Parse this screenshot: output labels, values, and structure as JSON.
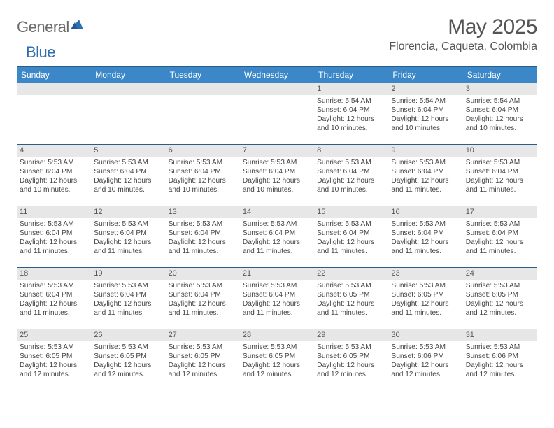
{
  "logo": {
    "text1": "General",
    "text2": "Blue"
  },
  "title": "May 2025",
  "location": "Florencia, Caqueta, Colombia",
  "colors": {
    "header_bg": "#3b87c8",
    "header_border": "#2a5d8a",
    "daynum_bg": "#e7e7e7",
    "text": "#444444",
    "logo_gray": "#6b6b6b",
    "logo_blue": "#2f6fb0"
  },
  "weekdays": [
    "Sunday",
    "Monday",
    "Tuesday",
    "Wednesday",
    "Thursday",
    "Friday",
    "Saturday"
  ],
  "weeks": [
    [
      {
        "n": "",
        "sr": "",
        "ss": "",
        "dl": ""
      },
      {
        "n": "",
        "sr": "",
        "ss": "",
        "dl": ""
      },
      {
        "n": "",
        "sr": "",
        "ss": "",
        "dl": ""
      },
      {
        "n": "",
        "sr": "",
        "ss": "",
        "dl": ""
      },
      {
        "n": "1",
        "sr": "Sunrise: 5:54 AM",
        "ss": "Sunset: 6:04 PM",
        "dl": "Daylight: 12 hours and 10 minutes."
      },
      {
        "n": "2",
        "sr": "Sunrise: 5:54 AM",
        "ss": "Sunset: 6:04 PM",
        "dl": "Daylight: 12 hours and 10 minutes."
      },
      {
        "n": "3",
        "sr": "Sunrise: 5:54 AM",
        "ss": "Sunset: 6:04 PM",
        "dl": "Daylight: 12 hours and 10 minutes."
      }
    ],
    [
      {
        "n": "4",
        "sr": "Sunrise: 5:53 AM",
        "ss": "Sunset: 6:04 PM",
        "dl": "Daylight: 12 hours and 10 minutes."
      },
      {
        "n": "5",
        "sr": "Sunrise: 5:53 AM",
        "ss": "Sunset: 6:04 PM",
        "dl": "Daylight: 12 hours and 10 minutes."
      },
      {
        "n": "6",
        "sr": "Sunrise: 5:53 AM",
        "ss": "Sunset: 6:04 PM",
        "dl": "Daylight: 12 hours and 10 minutes."
      },
      {
        "n": "7",
        "sr": "Sunrise: 5:53 AM",
        "ss": "Sunset: 6:04 PM",
        "dl": "Daylight: 12 hours and 10 minutes."
      },
      {
        "n": "8",
        "sr": "Sunrise: 5:53 AM",
        "ss": "Sunset: 6:04 PM",
        "dl": "Daylight: 12 hours and 10 minutes."
      },
      {
        "n": "9",
        "sr": "Sunrise: 5:53 AM",
        "ss": "Sunset: 6:04 PM",
        "dl": "Daylight: 12 hours and 11 minutes."
      },
      {
        "n": "10",
        "sr": "Sunrise: 5:53 AM",
        "ss": "Sunset: 6:04 PM",
        "dl": "Daylight: 12 hours and 11 minutes."
      }
    ],
    [
      {
        "n": "11",
        "sr": "Sunrise: 5:53 AM",
        "ss": "Sunset: 6:04 PM",
        "dl": "Daylight: 12 hours and 11 minutes."
      },
      {
        "n": "12",
        "sr": "Sunrise: 5:53 AM",
        "ss": "Sunset: 6:04 PM",
        "dl": "Daylight: 12 hours and 11 minutes."
      },
      {
        "n": "13",
        "sr": "Sunrise: 5:53 AM",
        "ss": "Sunset: 6:04 PM",
        "dl": "Daylight: 12 hours and 11 minutes."
      },
      {
        "n": "14",
        "sr": "Sunrise: 5:53 AM",
        "ss": "Sunset: 6:04 PM",
        "dl": "Daylight: 12 hours and 11 minutes."
      },
      {
        "n": "15",
        "sr": "Sunrise: 5:53 AM",
        "ss": "Sunset: 6:04 PM",
        "dl": "Daylight: 12 hours and 11 minutes."
      },
      {
        "n": "16",
        "sr": "Sunrise: 5:53 AM",
        "ss": "Sunset: 6:04 PM",
        "dl": "Daylight: 12 hours and 11 minutes."
      },
      {
        "n": "17",
        "sr": "Sunrise: 5:53 AM",
        "ss": "Sunset: 6:04 PM",
        "dl": "Daylight: 12 hours and 11 minutes."
      }
    ],
    [
      {
        "n": "18",
        "sr": "Sunrise: 5:53 AM",
        "ss": "Sunset: 6:04 PM",
        "dl": "Daylight: 12 hours and 11 minutes."
      },
      {
        "n": "19",
        "sr": "Sunrise: 5:53 AM",
        "ss": "Sunset: 6:04 PM",
        "dl": "Daylight: 12 hours and 11 minutes."
      },
      {
        "n": "20",
        "sr": "Sunrise: 5:53 AM",
        "ss": "Sunset: 6:04 PM",
        "dl": "Daylight: 12 hours and 11 minutes."
      },
      {
        "n": "21",
        "sr": "Sunrise: 5:53 AM",
        "ss": "Sunset: 6:04 PM",
        "dl": "Daylight: 12 hours and 11 minutes."
      },
      {
        "n": "22",
        "sr": "Sunrise: 5:53 AM",
        "ss": "Sunset: 6:05 PM",
        "dl": "Daylight: 12 hours and 11 minutes."
      },
      {
        "n": "23",
        "sr": "Sunrise: 5:53 AM",
        "ss": "Sunset: 6:05 PM",
        "dl": "Daylight: 12 hours and 11 minutes."
      },
      {
        "n": "24",
        "sr": "Sunrise: 5:53 AM",
        "ss": "Sunset: 6:05 PM",
        "dl": "Daylight: 12 hours and 12 minutes."
      }
    ],
    [
      {
        "n": "25",
        "sr": "Sunrise: 5:53 AM",
        "ss": "Sunset: 6:05 PM",
        "dl": "Daylight: 12 hours and 12 minutes."
      },
      {
        "n": "26",
        "sr": "Sunrise: 5:53 AM",
        "ss": "Sunset: 6:05 PM",
        "dl": "Daylight: 12 hours and 12 minutes."
      },
      {
        "n": "27",
        "sr": "Sunrise: 5:53 AM",
        "ss": "Sunset: 6:05 PM",
        "dl": "Daylight: 12 hours and 12 minutes."
      },
      {
        "n": "28",
        "sr": "Sunrise: 5:53 AM",
        "ss": "Sunset: 6:05 PM",
        "dl": "Daylight: 12 hours and 12 minutes."
      },
      {
        "n": "29",
        "sr": "Sunrise: 5:53 AM",
        "ss": "Sunset: 6:05 PM",
        "dl": "Daylight: 12 hours and 12 minutes."
      },
      {
        "n": "30",
        "sr": "Sunrise: 5:53 AM",
        "ss": "Sunset: 6:06 PM",
        "dl": "Daylight: 12 hours and 12 minutes."
      },
      {
        "n": "31",
        "sr": "Sunrise: 5:53 AM",
        "ss": "Sunset: 6:06 PM",
        "dl": "Daylight: 12 hours and 12 minutes."
      }
    ]
  ]
}
